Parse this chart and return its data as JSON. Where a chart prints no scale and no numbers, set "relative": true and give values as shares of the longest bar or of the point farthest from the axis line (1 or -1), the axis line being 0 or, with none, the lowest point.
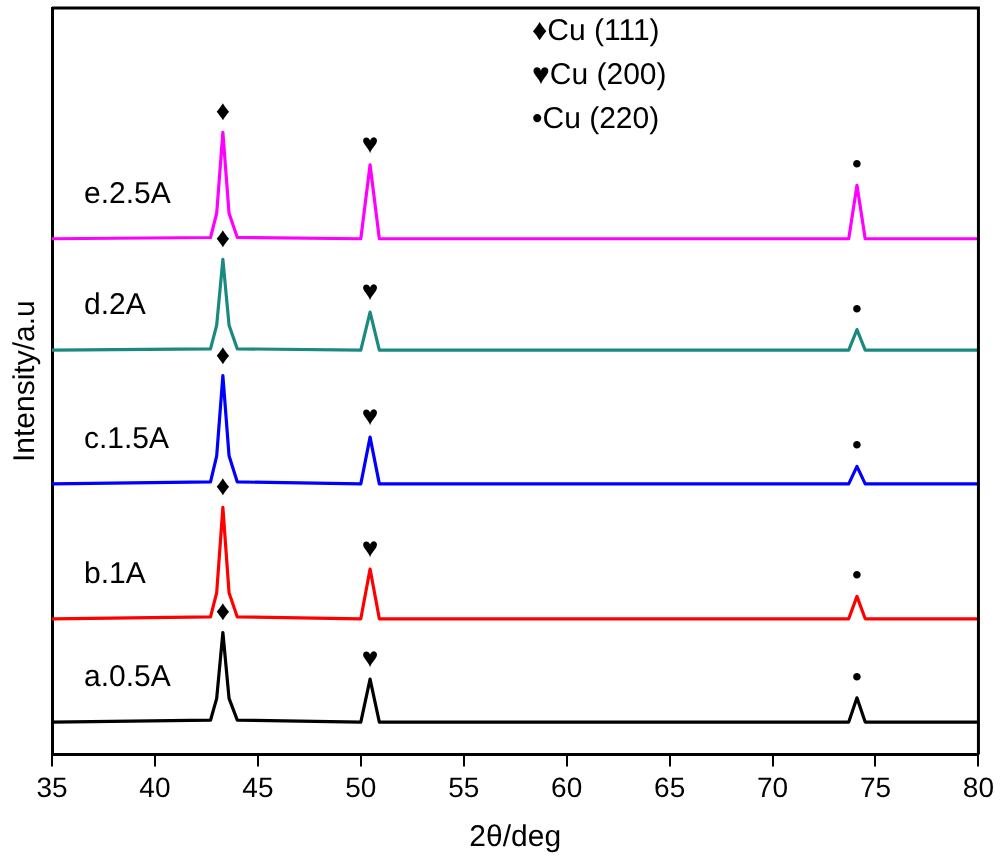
{
  "chart_data": {
    "type": "line",
    "xlabel": "2θ/deg",
    "ylabel": "Intensity/a.u",
    "relative": true,
    "x": [
      35,
      42.7,
      43.0,
      43.3,
      43.6,
      44.0,
      50.0,
      50.45,
      50.9,
      73.7,
      74.1,
      74.5,
      80
    ],
    "xlim": [
      35,
      80
    ],
    "xticks": [
      35,
      40,
      45,
      50,
      55,
      60,
      65,
      70,
      75,
      80
    ],
    "series": [
      {
        "name": "a.0.5A",
        "color": "#000000",
        "values": [
          0.052,
          0.055,
          0.09,
          0.196,
          0.09,
          0.055,
          0.052,
          0.121,
          0.052,
          0.052,
          0.091,
          0.052,
          0.052
        ]
      },
      {
        "name": "b.1A",
        "color": "#ff0000",
        "values": [
          0.218,
          0.221,
          0.26,
          0.397,
          0.26,
          0.221,
          0.218,
          0.298,
          0.218,
          0.218,
          0.254,
          0.218,
          0.218
        ]
      },
      {
        "name": "c.1.5A",
        "color": "#0000ff",
        "values": [
          0.435,
          0.438,
          0.48,
          0.609,
          0.48,
          0.438,
          0.435,
          0.51,
          0.435,
          0.435,
          0.463,
          0.435,
          0.435
        ]
      },
      {
        "name": "d.2A",
        "color": "#1a8a80",
        "values": [
          0.65,
          0.652,
          0.69,
          0.796,
          0.69,
          0.652,
          0.65,
          0.711,
          0.65,
          0.65,
          0.683,
          0.65,
          0.65
        ]
      },
      {
        "name": "e.2.5A",
        "color": "#ff00ff",
        "values": [
          0.829,
          0.831,
          0.87,
          1.0,
          0.87,
          0.831,
          0.829,
          0.948,
          0.829,
          0.829,
          0.915,
          0.829,
          0.829
        ]
      }
    ],
    "annotations": [
      "♦Cu (111)",
      "♥Cu (200)",
      "•Cu (220)",
      {
        "text": "♦",
        "x": 43.3,
        "y": 0.196
      },
      {
        "text": "♥",
        "x": 50.45,
        "y": 0.121
      },
      {
        "text": "•",
        "x": 74.1,
        "y": 0.091
      },
      {
        "text": "♦",
        "x": 43.3,
        "y": 0.397
      },
      {
        "text": "♥",
        "x": 50.45,
        "y": 0.298
      },
      {
        "text": "•",
        "x": 74.1,
        "y": 0.254
      },
      {
        "text": "♦",
        "x": 43.3,
        "y": 0.609
      },
      {
        "text": "♥",
        "x": 50.45,
        "y": 0.51
      },
      {
        "text": "•",
        "x": 74.1,
        "y": 0.463
      },
      {
        "text": "♦",
        "x": 43.3,
        "y": 0.796
      },
      {
        "text": "♥",
        "x": 50.45,
        "y": 0.711
      },
      {
        "text": "•",
        "x": 74.1,
        "y": 0.683
      },
      {
        "text": "♦",
        "x": 43.3,
        "y": 1.0
      },
      {
        "text": "♥",
        "x": 50.45,
        "y": 0.948
      },
      {
        "text": "•",
        "x": 74.1,
        "y": 0.915
      }
    ],
    "legend": false,
    "grid": false,
    "marker": "none",
    "line_style": "solid"
  }
}
